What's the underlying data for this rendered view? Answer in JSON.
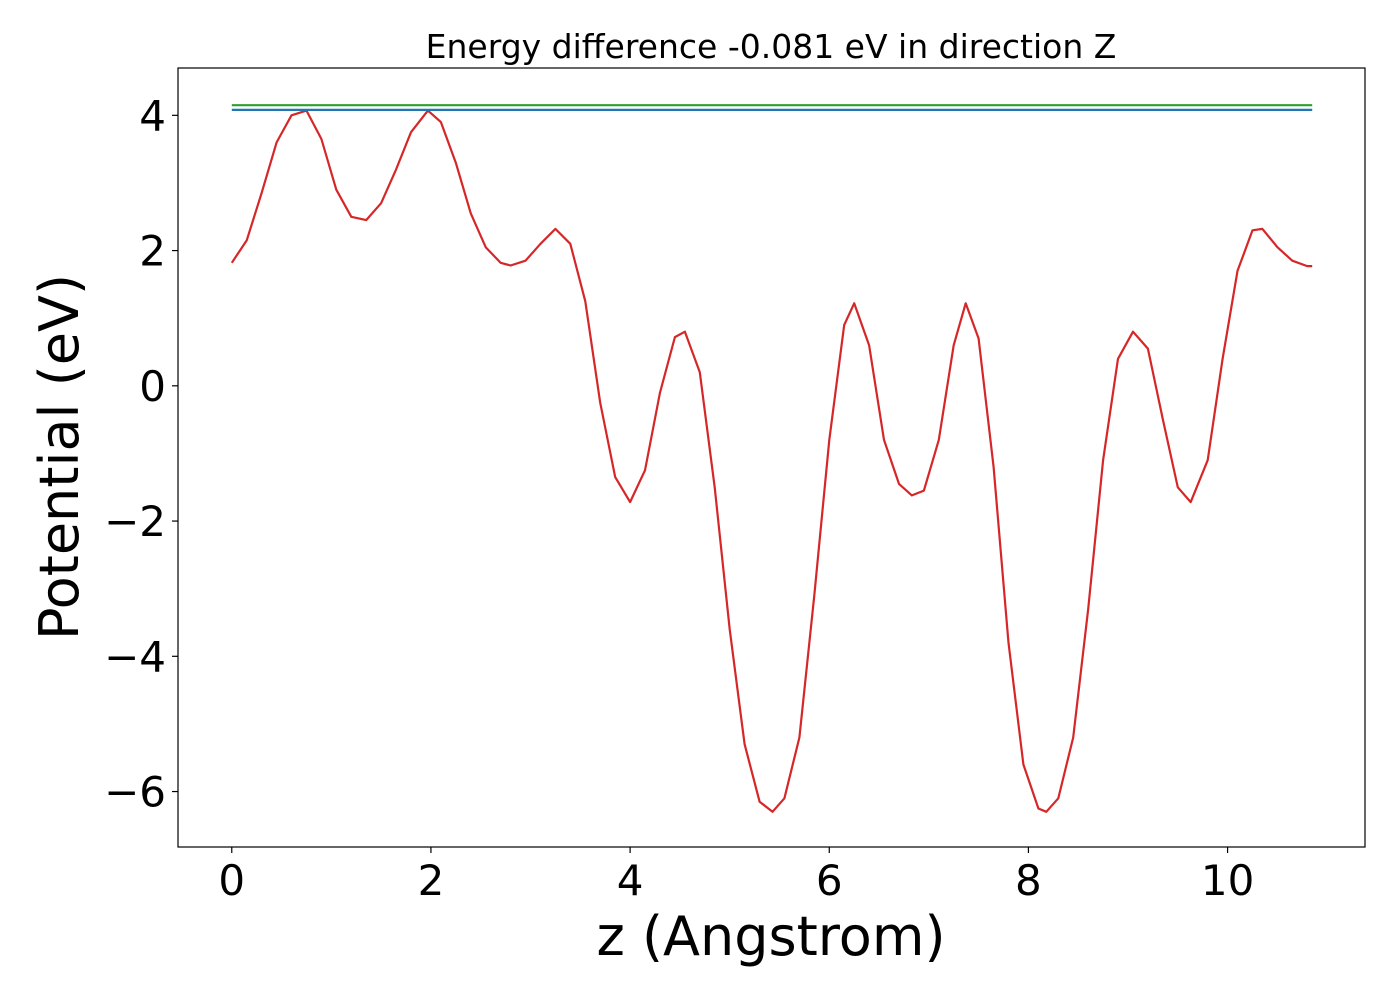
{
  "chart_data": {
    "type": "line",
    "title": "Energy difference -0.081 eV in direction Z",
    "xlabel": "z (Angstrom)",
    "ylabel": "Potential (eV)",
    "xlim": [
      -0.54,
      11.38
    ],
    "ylim": [
      -6.82,
      4.7
    ],
    "x_ticks": [
      0,
      2,
      4,
      6,
      8,
      10
    ],
    "x_tick_labels": [
      "0",
      "2",
      "4",
      "6",
      "8",
      "10"
    ],
    "y_ticks": [
      4,
      2,
      0,
      -2,
      -4,
      -6
    ],
    "y_tick_labels": [
      "4",
      "2",
      "0",
      "−2",
      "−4",
      "−6"
    ],
    "grid": false,
    "legend": "none",
    "series": [
      {
        "color": "#d62728",
        "x": [
          0,
          0.15,
          0.3,
          0.45,
          0.6,
          0.75,
          0.9,
          1.05,
          1.2,
          1.35,
          1.5,
          1.65,
          1.8,
          1.97,
          2.1,
          2.25,
          2.4,
          2.55,
          2.7,
          2.8,
          2.95,
          3.1,
          3.25,
          3.4,
          3.55,
          3.7,
          3.85,
          4.0,
          4.15,
          4.3,
          4.45,
          4.55,
          4.7,
          4.85,
          5.0,
          5.15,
          5.3,
          5.43,
          5.55,
          5.7,
          5.85,
          6.0,
          6.15,
          6.25,
          6.4,
          6.55,
          6.7,
          6.83,
          6.95,
          7.1,
          7.25,
          7.37,
          7.5,
          7.65,
          7.8,
          7.95,
          8.1,
          8.18,
          8.3,
          8.45,
          8.6,
          8.75,
          8.9,
          9.05,
          9.2,
          9.35,
          9.5,
          9.63,
          9.8,
          9.95,
          10.1,
          10.25,
          10.35,
          10.5,
          10.65,
          10.8,
          10.85
        ],
        "y": [
          1.82,
          2.15,
          2.85,
          3.6,
          4.0,
          4.07,
          3.65,
          2.9,
          2.5,
          2.45,
          2.7,
          3.2,
          3.75,
          4.07,
          3.9,
          3.3,
          2.55,
          2.05,
          1.82,
          1.78,
          1.85,
          2.1,
          2.32,
          2.1,
          1.25,
          -0.25,
          -1.35,
          -1.72,
          -1.25,
          -0.1,
          0.72,
          0.8,
          0.2,
          -1.5,
          -3.6,
          -5.3,
          -6.15,
          -6.3,
          -6.1,
          -5.2,
          -3.1,
          -0.8,
          0.9,
          1.22,
          0.6,
          -0.8,
          -1.45,
          -1.62,
          -1.55,
          -0.8,
          0.6,
          1.22,
          0.7,
          -1.2,
          -3.8,
          -5.6,
          -6.25,
          -6.3,
          -6.1,
          -5.2,
          -3.3,
          -1.1,
          0.4,
          0.8,
          0.55,
          -0.5,
          -1.5,
          -1.72,
          -1.1,
          0.4,
          1.7,
          2.3,
          2.32,
          2.05,
          1.85,
          1.77,
          1.77
        ]
      },
      {
        "color": "#1f77b4",
        "x": [
          0,
          10.85
        ],
        "y": [
          4.08,
          4.08
        ]
      },
      {
        "color": "#2ca02c",
        "x": [
          0,
          10.85
        ],
        "y": [
          4.15,
          4.15
        ]
      }
    ]
  }
}
